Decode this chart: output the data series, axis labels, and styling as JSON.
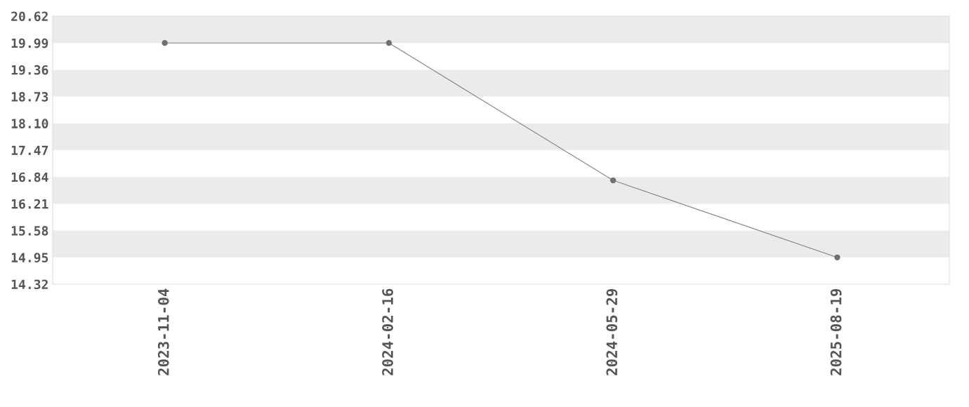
{
  "chart_data": {
    "type": "line",
    "categories": [
      "2023-11-04",
      "2024-02-16",
      "2024-05-29",
      "2025-08-19"
    ],
    "series": [
      {
        "color": "#808080",
        "values": [
          19.99,
          19.99,
          16.76,
          14.95
        ]
      }
    ],
    "marker": "circle",
    "line_style": "solid",
    "ylim": [
      14.32,
      20.62
    ],
    "yticks": [
      14.32,
      14.95,
      15.58,
      16.21,
      16.84,
      17.47,
      {
        "value": 18.1,
        "label": "18.10"
      },
      18.73,
      19.36,
      19.99,
      20.62
    ],
    "bands": [
      {
        "axis": "y",
        "from": 19.99,
        "to": 20.62,
        "color": "#ebebeb"
      },
      {
        "axis": "y",
        "from": 18.73,
        "to": 19.36,
        "color": "#ebebeb"
      },
      {
        "axis": "y",
        "from": 17.47,
        "to": 18.1,
        "color": "#ebebeb"
      },
      {
        "axis": "y",
        "from": 16.21,
        "to": 16.84,
        "color": "#ebebeb"
      },
      {
        "axis": "y",
        "from": 14.95,
        "to": 15.58,
        "color": "#ebebeb"
      }
    ],
    "grid": false
  }
}
